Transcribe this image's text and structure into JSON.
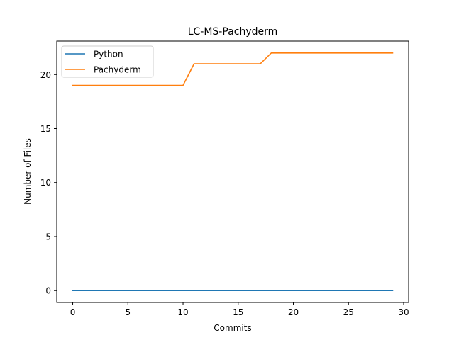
{
  "chart_data": {
    "type": "line",
    "title": "LC-MS-Pachyderm",
    "xlabel": "Commits",
    "ylabel": "Number of Files",
    "xlim": [
      -1.45,
      30.45
    ],
    "ylim": [
      -1.1,
      23.1
    ],
    "xticks": [
      0,
      5,
      10,
      15,
      20,
      25,
      30
    ],
    "yticks": [
      0,
      5,
      10,
      15,
      20
    ],
    "grid": false,
    "legend": "top-left",
    "x": [
      0,
      1,
      2,
      3,
      4,
      5,
      6,
      7,
      8,
      9,
      10,
      11,
      12,
      13,
      14,
      15,
      16,
      17,
      18,
      19,
      20,
      21,
      22,
      23,
      24,
      25,
      26,
      27,
      28,
      29
    ],
    "series": [
      {
        "name": "Python",
        "color": "#1f77b4",
        "values": [
          0,
          0,
          0,
          0,
          0,
          0,
          0,
          0,
          0,
          0,
          0,
          0,
          0,
          0,
          0,
          0,
          0,
          0,
          0,
          0,
          0,
          0,
          0,
          0,
          0,
          0,
          0,
          0,
          0,
          0
        ]
      },
      {
        "name": "Pachyderm",
        "color": "#ff7f0e",
        "values": [
          19,
          19,
          19,
          19,
          19,
          19,
          19,
          19,
          19,
          19,
          19,
          21,
          21,
          21,
          21,
          21,
          21,
          21,
          22,
          22,
          22,
          22,
          22,
          22,
          22,
          22,
          22,
          22,
          22,
          22
        ]
      }
    ]
  }
}
